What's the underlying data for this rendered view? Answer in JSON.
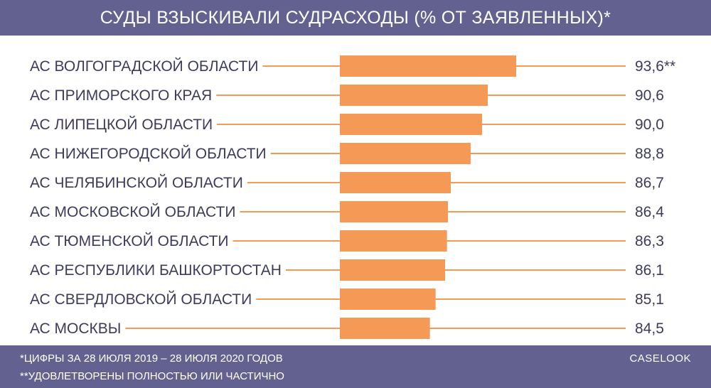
{
  "header": {
    "title": "СУДЫ ВЗЫСКИВАЛИ СУДРАСХОДЫ (% ОТ ЗАЯВЛЕННЫХ)*"
  },
  "footer": {
    "note1": "*ЦИФРЫ ЗА 28 ИЮЛЯ 2019 – 28 ИЮЛЯ 2020 ГОДОВ",
    "note2": "**УДОВЛЕТВОРЕНЫ ПОЛНОСТЬЮ ИЛИ ЧАСТИЧНО",
    "brand": "CASELOOK"
  },
  "colors": {
    "header_bg": "#63618f",
    "bar": "#f59a56",
    "text": "#3d3b5c"
  },
  "chart_data": {
    "type": "bar",
    "orientation": "horizontal",
    "title": "СУДЫ ВЗЫСКИВАЛИ СУДРАСХОДЫ (% ОТ ЗАЯВЛЕННЫХ)*",
    "categories": [
      "АС ВОЛГОГРАДСКОЙ ОБЛАСТИ",
      "АС ПРИМОРСКОГО КРАЯ",
      "АС ЛИПЕЦКОЙ ОБЛАСТИ",
      "АС НИЖЕГОРОДСКОЙ ОБЛАСТИ",
      "АС ЧЕЛЯБИНСКОЙ ОБЛАСТИ",
      "АС МОСКОВСКОЙ ОБЛАСТИ",
      "АС ТЮМЕНСКОЙ ОБЛАСТИ",
      "АС РЕСПУБЛИКИ БАШКОРТОСТАН",
      "АС СВЕРДЛОВСКОЙ ОБЛАСТИ",
      "АС МОСКВЫ"
    ],
    "values": [
      93.6,
      90.6,
      90.0,
      88.8,
      86.7,
      86.4,
      86.3,
      86.1,
      85.1,
      84.5
    ],
    "value_labels": [
      "93,6**",
      "90,6",
      "90,0",
      "88,8",
      "86,7",
      "86,4",
      "86,3",
      "86,1",
      "85,1",
      "84,5"
    ],
    "xlim": [
      75,
      100
    ],
    "grid": false,
    "legend": "none"
  }
}
